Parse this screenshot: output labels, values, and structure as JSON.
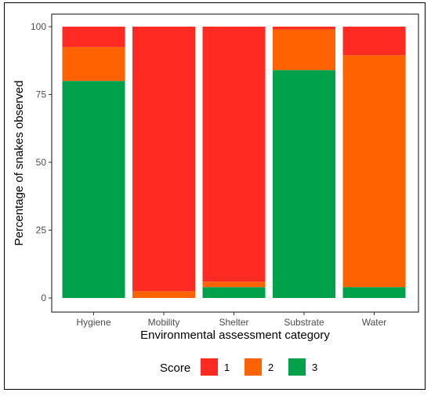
{
  "chart_data": {
    "type": "bar",
    "stacked": true,
    "xlabel": "Environmental assessment category",
    "ylabel": "Percentage of snakes observed",
    "ylim": [
      0,
      100
    ],
    "yticks": [
      "0",
      "25",
      "50",
      "75",
      "100"
    ],
    "categories": [
      "Hygiene",
      "Mobility",
      "Shelter",
      "Substrate",
      "Water"
    ],
    "series": [
      {
        "name": "3",
        "color": "#00a14b",
        "values": [
          80,
          0,
          4,
          84,
          4
        ]
      },
      {
        "name": "2",
        "color": "#ff6200",
        "values": [
          12.5,
          2.5,
          2,
          15,
          85.5
        ]
      },
      {
        "name": "1",
        "color": "#ff2a22",
        "values": [
          7.5,
          97.5,
          94,
          1,
          10.5
        ]
      }
    ],
    "legend": {
      "title": "Score",
      "placement": "bottom",
      "order": [
        "1",
        "2",
        "3"
      ]
    },
    "grid": false,
    "border": true
  }
}
